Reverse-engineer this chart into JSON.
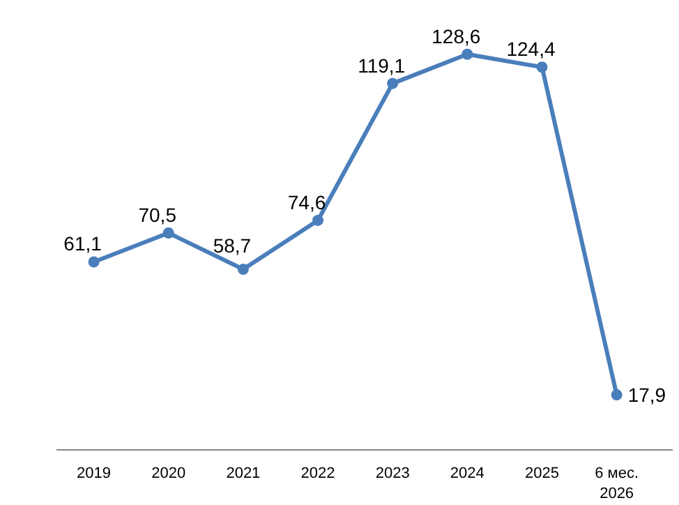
{
  "chart_data": {
    "type": "line",
    "categories": [
      "2019",
      "2020",
      "2021",
      "2022",
      "2023",
      "2024",
      "2025",
      "6 мес.\n2026"
    ],
    "series": [
      {
        "color": "#4a7ebb",
        "values": [
          61.1,
          70.5,
          58.7,
          74.6,
          119.1,
          128.6,
          124.4,
          17.9
        ],
        "value_labels": [
          "61,1",
          "70,5",
          "58,7",
          "74,6",
          "119,1",
          "128,6",
          "124,4",
          "17,9"
        ]
      }
    ],
    "marker": "circle",
    "line_style": "solid"
  }
}
